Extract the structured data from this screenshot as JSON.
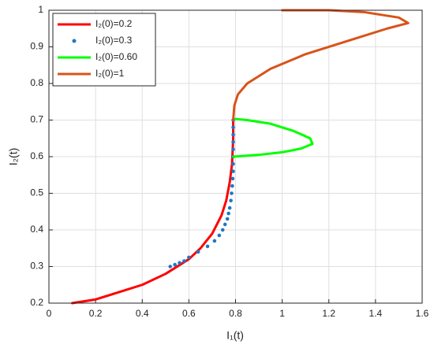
{
  "chart_data": {
    "type": "line",
    "xlabel": "I₁(t)",
    "ylabel": "I₂(t)",
    "xlim": [
      0,
      1.6
    ],
    "ylim": [
      0.2,
      1
    ],
    "xticks": [
      0,
      0.2,
      0.4,
      0.6,
      0.8,
      1,
      1.2,
      1.4,
      1.6
    ],
    "yticks": [
      0.2,
      0.3,
      0.4,
      0.5,
      0.6,
      0.7,
      0.8,
      0.9,
      1
    ],
    "grid": true,
    "legend": "upper left",
    "series": [
      {
        "name": "I₂(0)=0.2",
        "color": "#ff0000",
        "mode": "line",
        "x": [
          0.1,
          0.2,
          0.3,
          0.4,
          0.5,
          0.6,
          0.65,
          0.7,
          0.74,
          0.76,
          0.775,
          0.785,
          0.79,
          0.79
        ],
        "values": [
          0.2,
          0.21,
          0.23,
          0.25,
          0.28,
          0.32,
          0.35,
          0.39,
          0.44,
          0.48,
          0.53,
          0.58,
          0.65,
          0.7
        ]
      },
      {
        "name": "I₂(0)=0.3",
        "color": "#1f77c4",
        "mode": "markers",
        "x": [
          0.52,
          0.54,
          0.56,
          0.58,
          0.6,
          0.64,
          0.68,
          0.71,
          0.73,
          0.745,
          0.755,
          0.765,
          0.77,
          0.775,
          0.78,
          0.783,
          0.786,
          0.788,
          0.79,
          0.79,
          0.79,
          0.79,
          0.79,
          0.79,
          0.79,
          0.79
        ],
        "values": [
          0.3,
          0.305,
          0.31,
          0.315,
          0.325,
          0.34,
          0.355,
          0.37,
          0.385,
          0.4,
          0.415,
          0.43,
          0.445,
          0.46,
          0.48,
          0.5,
          0.52,
          0.54,
          0.56,
          0.58,
          0.6,
          0.62,
          0.64,
          0.66,
          0.68,
          0.7
        ]
      },
      {
        "name": "I₂(0)=0.60",
        "color": "#00ff00",
        "mode": "line",
        "x": [
          0.79,
          0.9,
          1.0,
          1.08,
          1.13,
          1.12,
          1.05,
          0.95,
          0.85,
          0.8
        ],
        "values": [
          0.6,
          0.605,
          0.612,
          0.622,
          0.635,
          0.65,
          0.67,
          0.69,
          0.7,
          0.703
        ]
      },
      {
        "name": "I₂(0)=1",
        "color": "#d95319",
        "mode": "line",
        "x": [
          0.79,
          0.795,
          0.81,
          0.85,
          0.95,
          1.1,
          1.3,
          1.45,
          1.54,
          1.5,
          1.35,
          1.2,
          1.0
        ],
        "values": [
          0.7,
          0.74,
          0.77,
          0.8,
          0.84,
          0.88,
          0.92,
          0.95,
          0.965,
          0.98,
          0.995,
          1.0,
          1.0
        ]
      }
    ]
  }
}
